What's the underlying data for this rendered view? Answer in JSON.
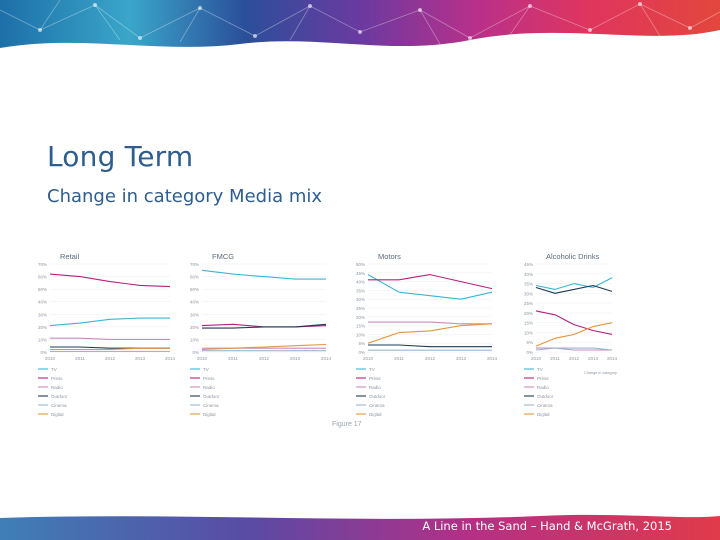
{
  "slide": {
    "title": "Long Term",
    "subtitle": "Change in category Media mix",
    "figure_caption": "Figure 17",
    "credit": "A Line in the Sand – Hand & McGrath, 2015"
  },
  "colors": {
    "title": "#2e5d8e",
    "tv": "#38b6d8",
    "press": "#b5217f",
    "radio": "#c98bc0",
    "outdoor": "#1f3a57",
    "cinema": "#9bb8cf",
    "digital": "#e7953a"
  },
  "legend": [
    "TV",
    "Press",
    "Radio",
    "Outdoor",
    "Cinema",
    "Digital"
  ],
  "chart_data": [
    {
      "type": "line",
      "title": "Retail",
      "x": [
        "2010",
        "2011",
        "2012",
        "2013",
        "2014"
      ],
      "yticks": [
        "70%",
        "60%",
        "50%",
        "40%",
        "30%",
        "20%",
        "10%",
        "0%"
      ],
      "ylim": [
        0,
        70
      ],
      "legend": [
        "TV",
        "Press",
        "Radio",
        "Outdoor",
        "Cinema",
        "Digital"
      ],
      "series": [
        {
          "name": "TV",
          "values": [
            21,
            23,
            26,
            27,
            27
          ]
        },
        {
          "name": "Press",
          "values": [
            62,
            60,
            56,
            53,
            52
          ]
        },
        {
          "name": "Radio",
          "values": [
            11,
            11,
            10,
            10,
            10
          ]
        },
        {
          "name": "Outdoor",
          "values": [
            4,
            4,
            3,
            3,
            3
          ]
        },
        {
          "name": "Cinema",
          "values": [
            0.5,
            0.5,
            0.5,
            0.5,
            0.5
          ]
        },
        {
          "name": "Digital",
          "values": [
            2,
            2,
            2,
            3,
            3
          ]
        }
      ]
    },
    {
      "type": "line",
      "title": "FMCG",
      "x": [
        "2010",
        "2011",
        "2012",
        "2013",
        "2014"
      ],
      "yticks": [
        "70%",
        "60%",
        "50%",
        "40%",
        "30%",
        "20%",
        "10%",
        "0%"
      ],
      "ylim": [
        0,
        70
      ],
      "legend": [
        "TV",
        "Press",
        "Radio",
        "Outdoor",
        "Cinema",
        "Digital"
      ],
      "series": [
        {
          "name": "TV",
          "values": [
            65,
            62,
            60,
            58,
            58
          ]
        },
        {
          "name": "Press",
          "values": [
            21,
            22,
            20,
            20,
            21
          ]
        },
        {
          "name": "Radio",
          "values": [
            3,
            3,
            3,
            3,
            3
          ]
        },
        {
          "name": "Outdoor",
          "values": [
            19,
            19,
            20,
            20,
            22
          ]
        },
        {
          "name": "Cinema",
          "values": [
            1,
            1,
            1,
            1,
            1
          ]
        },
        {
          "name": "Digital",
          "values": [
            2,
            3,
            4,
            5,
            6
          ]
        }
      ]
    },
    {
      "type": "line",
      "title": "Motors",
      "x": [
        "2010",
        "2011",
        "2012",
        "2013",
        "2014"
      ],
      "yticks": [
        "50%",
        "45%",
        "40%",
        "35%",
        "30%",
        "25%",
        "20%",
        "15%",
        "10%",
        "5%",
        "0%"
      ],
      "ylim": [
        0,
        50
      ],
      "legend": [
        "TV",
        "Press",
        "Radio",
        "Outdoor",
        "Cinema",
        "Digital"
      ],
      "series": [
        {
          "name": "TV",
          "values": [
            44,
            34,
            32,
            30,
            34
          ]
        },
        {
          "name": "Press",
          "values": [
            41,
            41,
            44,
            40,
            36
          ]
        },
        {
          "name": "Radio",
          "values": [
            17,
            17,
            17,
            16,
            16
          ]
        },
        {
          "name": "Outdoor",
          "values": [
            4,
            4,
            3,
            3,
            3
          ]
        },
        {
          "name": "Cinema",
          "values": [
            1,
            1,
            1,
            1,
            1
          ]
        },
        {
          "name": "Digital",
          "values": [
            5,
            11,
            12,
            15,
            16
          ]
        }
      ]
    },
    {
      "type": "line",
      "title": "Alcoholic Drinks",
      "x": [
        "2010",
        "2011",
        "2012",
        "2013",
        "2014"
      ],
      "yticks": [
        "45%",
        "40%",
        "35%",
        "30%",
        "25%",
        "20%",
        "15%",
        "10%",
        "5%",
        "0%"
      ],
      "ylim": [
        0,
        45
      ],
      "legend": [
        "TV",
        "Press",
        "Radio",
        "Outdoor",
        "Cinema",
        "Digital"
      ],
      "note": "Change in category media mix",
      "series": [
        {
          "name": "TV",
          "values": [
            34,
            32,
            35,
            33,
            38
          ]
        },
        {
          "name": "Press",
          "values": [
            21,
            19,
            14,
            11,
            9
          ]
        },
        {
          "name": "Radio",
          "values": [
            2,
            2,
            1,
            1,
            1
          ]
        },
        {
          "name": "Outdoor",
          "values": [
            33,
            30,
            32,
            34,
            31
          ]
        },
        {
          "name": "Cinema",
          "values": [
            1,
            2,
            2,
            2,
            1
          ]
        },
        {
          "name": "Digital",
          "values": [
            3,
            7,
            9,
            13,
            15
          ]
        }
      ]
    }
  ]
}
